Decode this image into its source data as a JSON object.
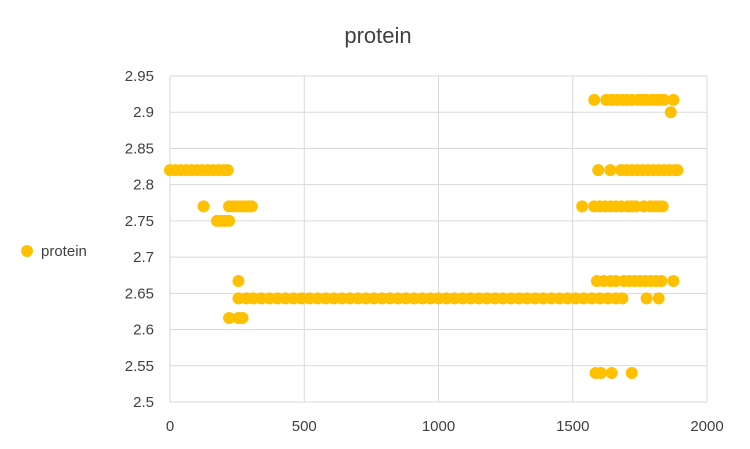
{
  "chart_data": {
    "type": "scatter",
    "title": "protein",
    "xlabel": "",
    "ylabel": "",
    "xlim": [
      0,
      2000
    ],
    "ylim": [
      2.5,
      2.95
    ],
    "x_ticks": [
      "0",
      "500",
      "1000",
      "1500",
      "2000"
    ],
    "y_ticks": [
      "2.5",
      "2.55",
      "2.6",
      "2.65",
      "2.7",
      "2.75",
      "2.8",
      "2.85",
      "2.9",
      "2.95"
    ],
    "grid": true,
    "legend": "left",
    "color": "#FFC000",
    "series": [
      {
        "name": "protein",
        "points": [
          [
            0,
            2.82
          ],
          [
            20,
            2.82
          ],
          [
            40,
            2.82
          ],
          [
            60,
            2.82
          ],
          [
            80,
            2.82
          ],
          [
            100,
            2.82
          ],
          [
            120,
            2.82
          ],
          [
            140,
            2.82
          ],
          [
            160,
            2.82
          ],
          [
            180,
            2.82
          ],
          [
            200,
            2.82
          ],
          [
            215,
            2.82
          ],
          [
            125,
            2.77
          ],
          [
            175,
            2.75
          ],
          [
            190,
            2.75
          ],
          [
            205,
            2.75
          ],
          [
            220,
            2.75
          ],
          [
            220,
            2.77
          ],
          [
            235,
            2.77
          ],
          [
            250,
            2.77
          ],
          [
            265,
            2.77
          ],
          [
            280,
            2.77
          ],
          [
            295,
            2.77
          ],
          [
            305,
            2.77
          ],
          [
            255,
            2.667
          ],
          [
            255,
            2.643
          ],
          [
            285,
            2.643
          ],
          [
            310,
            2.643
          ],
          [
            340,
            2.643
          ],
          [
            370,
            2.643
          ],
          [
            400,
            2.643
          ],
          [
            430,
            2.643
          ],
          [
            460,
            2.643
          ],
          [
            490,
            2.643
          ],
          [
            520,
            2.643
          ],
          [
            550,
            2.643
          ],
          [
            580,
            2.643
          ],
          [
            610,
            2.643
          ],
          [
            640,
            2.643
          ],
          [
            670,
            2.643
          ],
          [
            700,
            2.643
          ],
          [
            730,
            2.643
          ],
          [
            760,
            2.643
          ],
          [
            790,
            2.643
          ],
          [
            820,
            2.643
          ],
          [
            850,
            2.643
          ],
          [
            880,
            2.643
          ],
          [
            910,
            2.643
          ],
          [
            940,
            2.643
          ],
          [
            970,
            2.643
          ],
          [
            1000,
            2.643
          ],
          [
            1030,
            2.643
          ],
          [
            1060,
            2.643
          ],
          [
            1090,
            2.643
          ],
          [
            1120,
            2.643
          ],
          [
            1150,
            2.643
          ],
          [
            1180,
            2.643
          ],
          [
            1210,
            2.643
          ],
          [
            1240,
            2.643
          ],
          [
            1270,
            2.643
          ],
          [
            1300,
            2.643
          ],
          [
            1330,
            2.643
          ],
          [
            1360,
            2.643
          ],
          [
            1390,
            2.643
          ],
          [
            1420,
            2.643
          ],
          [
            1450,
            2.643
          ],
          [
            1480,
            2.643
          ],
          [
            1510,
            2.643
          ],
          [
            1540,
            2.643
          ],
          [
            1570,
            2.643
          ],
          [
            1600,
            2.643
          ],
          [
            1630,
            2.643
          ],
          [
            1660,
            2.643
          ],
          [
            1685,
            2.643
          ],
          [
            1775,
            2.643
          ],
          [
            1820,
            2.643
          ],
          [
            220,
            2.616
          ],
          [
            255,
            2.616
          ],
          [
            270,
            2.616
          ],
          [
            1580,
            2.917
          ],
          [
            1625,
            2.917
          ],
          [
            1645,
            2.917
          ],
          [
            1665,
            2.917
          ],
          [
            1685,
            2.917
          ],
          [
            1700,
            2.917
          ],
          [
            1720,
            2.917
          ],
          [
            1745,
            2.917
          ],
          [
            1760,
            2.917
          ],
          [
            1775,
            2.917
          ],
          [
            1795,
            2.917
          ],
          [
            1810,
            2.917
          ],
          [
            1825,
            2.917
          ],
          [
            1840,
            2.917
          ],
          [
            1875,
            2.917
          ],
          [
            1865,
            2.9
          ],
          [
            1595,
            2.82
          ],
          [
            1640,
            2.82
          ],
          [
            1680,
            2.82
          ],
          [
            1700,
            2.82
          ],
          [
            1720,
            2.82
          ],
          [
            1740,
            2.82
          ],
          [
            1760,
            2.82
          ],
          [
            1780,
            2.82
          ],
          [
            1800,
            2.82
          ],
          [
            1820,
            2.82
          ],
          [
            1840,
            2.82
          ],
          [
            1860,
            2.82
          ],
          [
            1880,
            2.82
          ],
          [
            1890,
            2.82
          ],
          [
            1535,
            2.77
          ],
          [
            1580,
            2.77
          ],
          [
            1600,
            2.77
          ],
          [
            1620,
            2.77
          ],
          [
            1640,
            2.77
          ],
          [
            1660,
            2.77
          ],
          [
            1680,
            2.77
          ],
          [
            1705,
            2.77
          ],
          [
            1720,
            2.77
          ],
          [
            1735,
            2.77
          ],
          [
            1765,
            2.77
          ],
          [
            1790,
            2.77
          ],
          [
            1805,
            2.77
          ],
          [
            1820,
            2.77
          ],
          [
            1835,
            2.77
          ],
          [
            1590,
            2.667
          ],
          [
            1615,
            2.667
          ],
          [
            1640,
            2.667
          ],
          [
            1660,
            2.667
          ],
          [
            1690,
            2.667
          ],
          [
            1710,
            2.667
          ],
          [
            1730,
            2.667
          ],
          [
            1750,
            2.667
          ],
          [
            1770,
            2.667
          ],
          [
            1790,
            2.667
          ],
          [
            1810,
            2.667
          ],
          [
            1830,
            2.667
          ],
          [
            1875,
            2.667
          ],
          [
            1585,
            2.54
          ],
          [
            1605,
            2.54
          ],
          [
            1645,
            2.54
          ],
          [
            1720,
            2.54
          ]
        ]
      }
    ]
  }
}
